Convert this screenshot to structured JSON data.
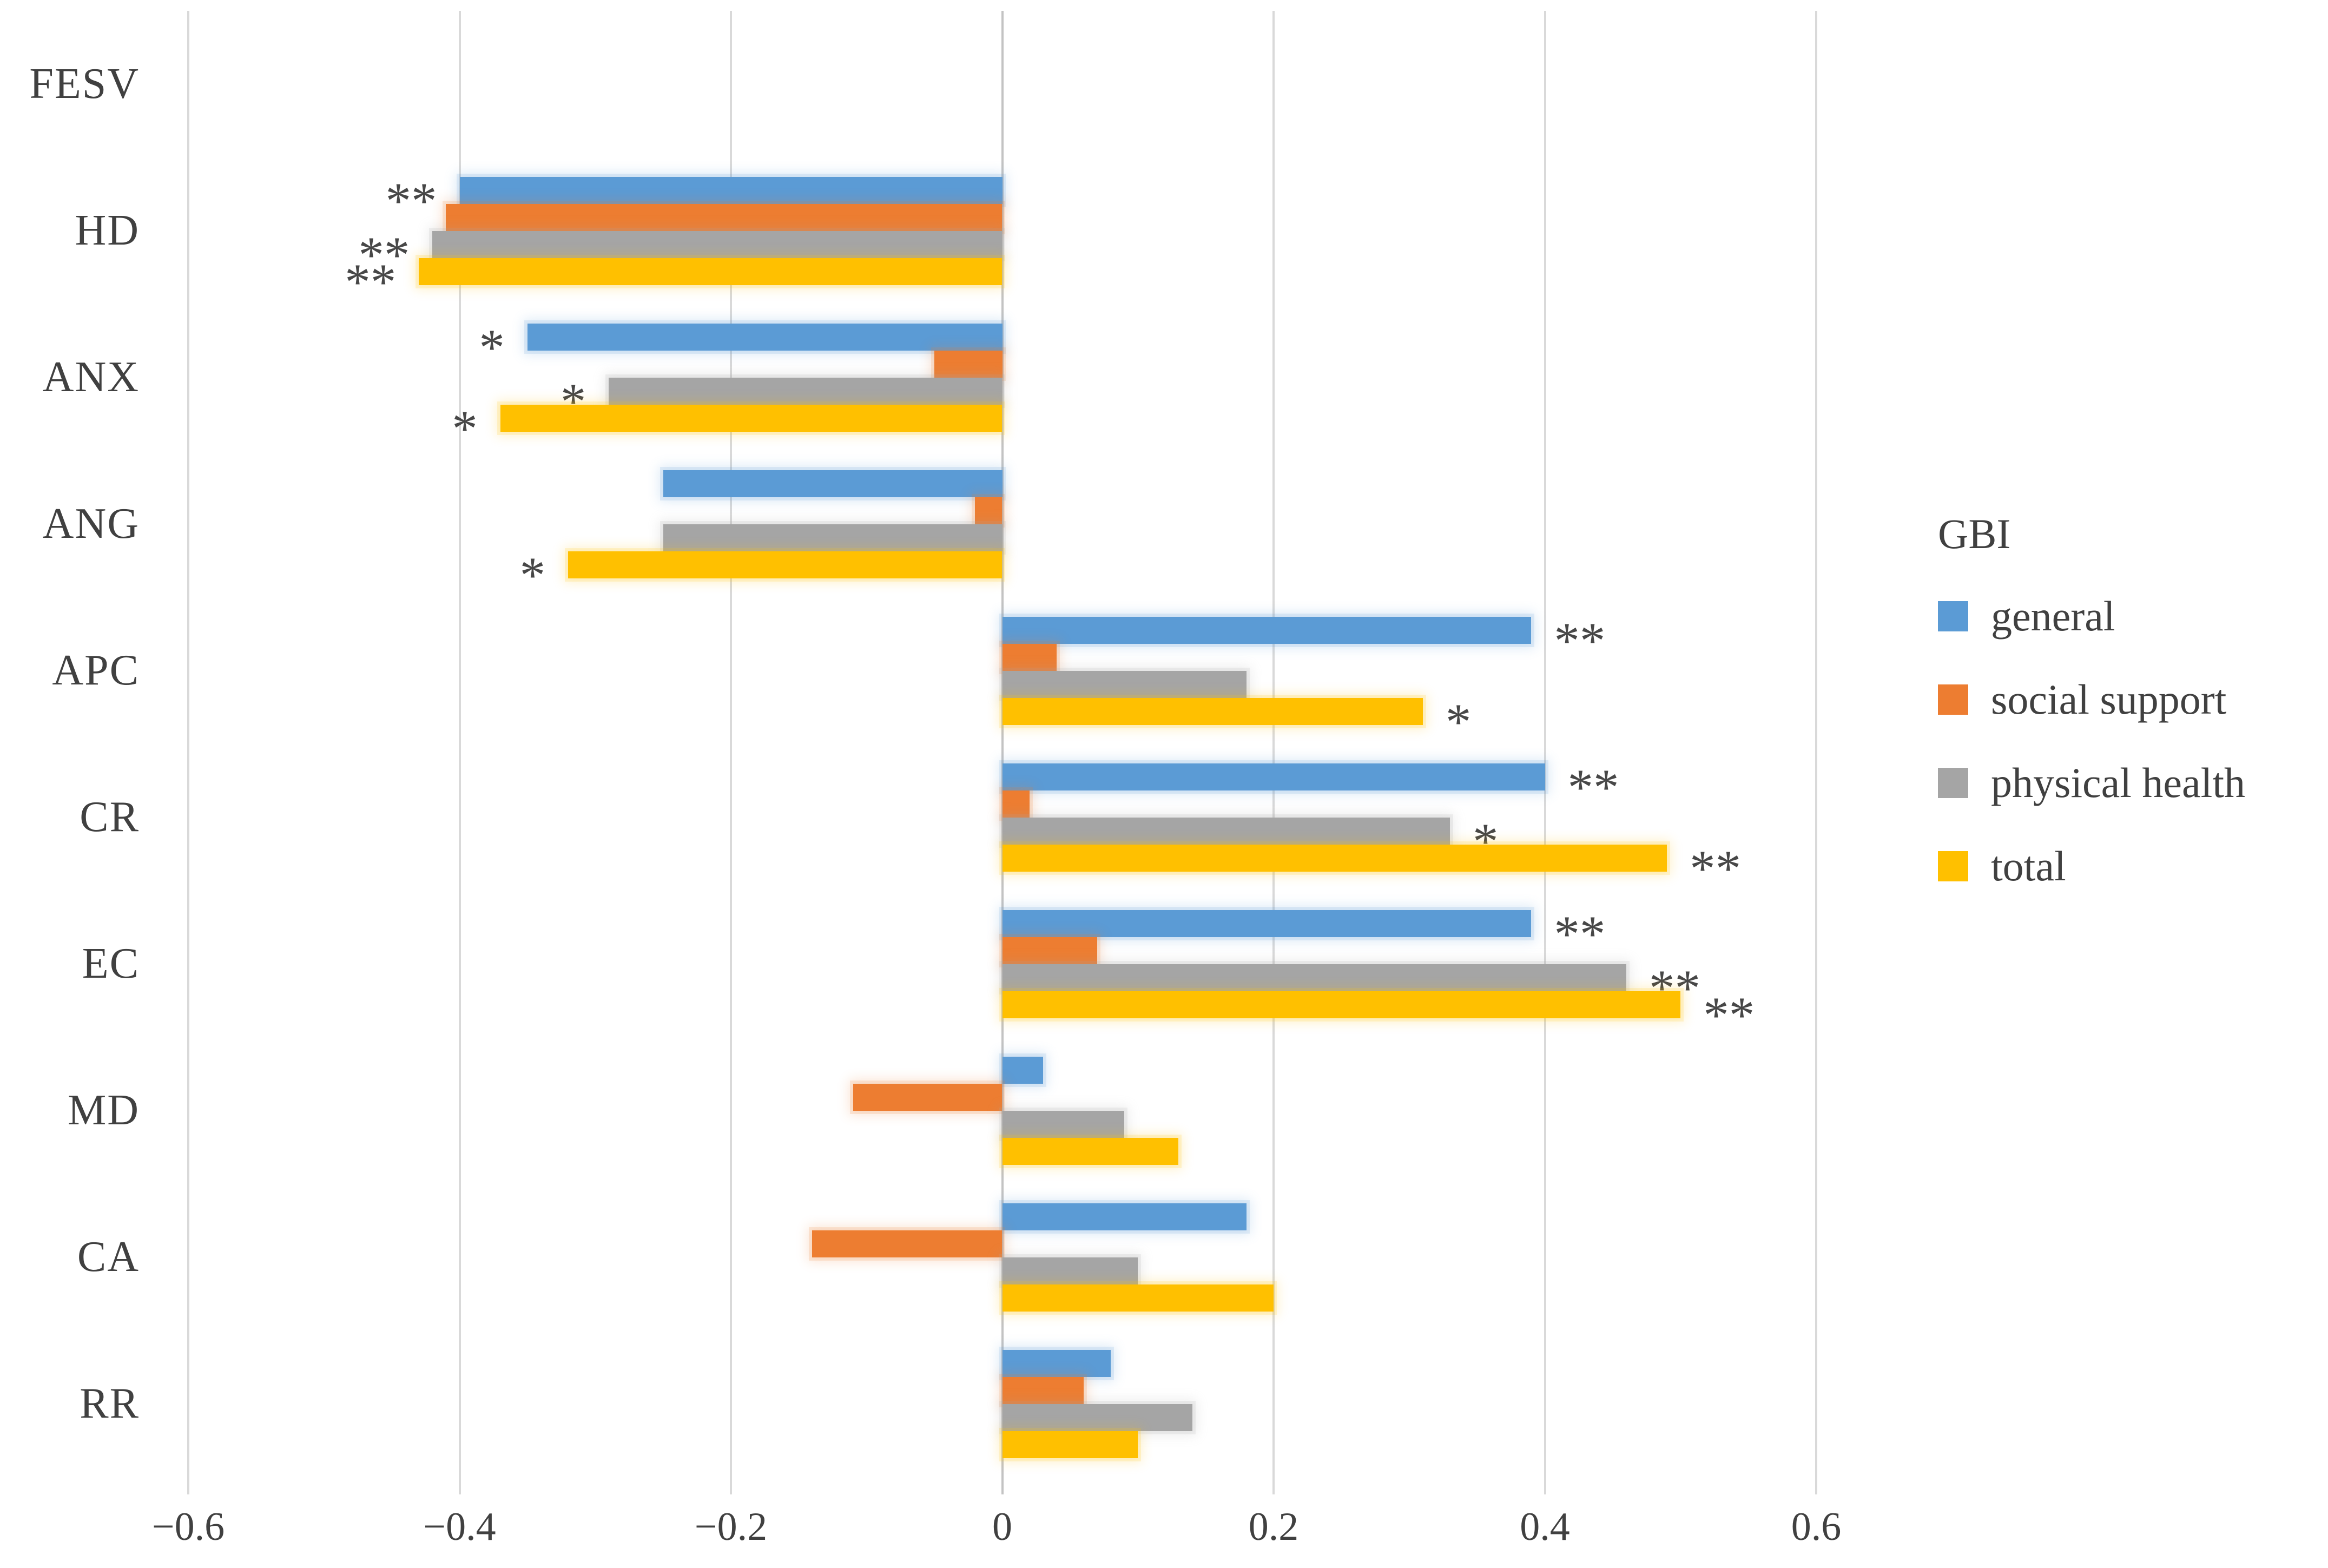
{
  "chart_data": {
    "type": "bar",
    "orientation": "horizontal",
    "title": "",
    "legend_title": "GBI",
    "legend_position": "right",
    "grid": true,
    "xlim": [
      -0.6,
      0.6
    ],
    "x_ticks": [
      -0.6,
      -0.4,
      -0.2,
      0,
      0.2,
      0.4,
      0.6
    ],
    "x_tick_labels": [
      "−0.6",
      "−0.4",
      "−0.2",
      "0",
      "0.2",
      "0.4",
      "0.6"
    ],
    "categories": [
      "FESV",
      "HD",
      "ANX",
      "ANG",
      "APC",
      "CR",
      "EC",
      "MD",
      "CA",
      "RR"
    ],
    "series": [
      {
        "name": "general",
        "color": "#5B9BD5",
        "values": [
          null,
          -0.4,
          -0.35,
          -0.25,
          0.39,
          0.4,
          0.39,
          0.03,
          0.18,
          0.08
        ],
        "sig": [
          "",
          "**",
          "*",
          "",
          "**",
          "**",
          "**",
          "",
          "",
          ""
        ]
      },
      {
        "name": "social support",
        "color": "#ED7D31",
        "values": [
          null,
          -0.41,
          -0.05,
          -0.02,
          0.04,
          0.02,
          0.07,
          -0.11,
          -0.14,
          0.06
        ],
        "sig": [
          "",
          "",
          "",
          "",
          "",
          "",
          "",
          "",
          "",
          ""
        ]
      },
      {
        "name": "physical health",
        "color": "#A5A5A5",
        "values": [
          null,
          -0.42,
          -0.29,
          -0.25,
          0.18,
          0.33,
          0.46,
          0.09,
          0.1,
          0.14
        ],
        "sig": [
          "",
          "**",
          "*",
          "",
          "",
          "*",
          "**",
          "",
          "",
          ""
        ]
      },
      {
        "name": "total",
        "color": "#FFC000",
        "values": [
          null,
          -0.43,
          -0.37,
          -0.32,
          0.31,
          0.49,
          0.5,
          0.13,
          0.2,
          0.1
        ],
        "sig": [
          "",
          "**",
          "*",
          "*",
          "*",
          "**",
          "**",
          "",
          "",
          ""
        ]
      }
    ],
    "gridline_color": "#D9D9D9",
    "zero_line_color": "#C3C3C3",
    "text_color": "#404040",
    "sig_color": "#474747"
  }
}
